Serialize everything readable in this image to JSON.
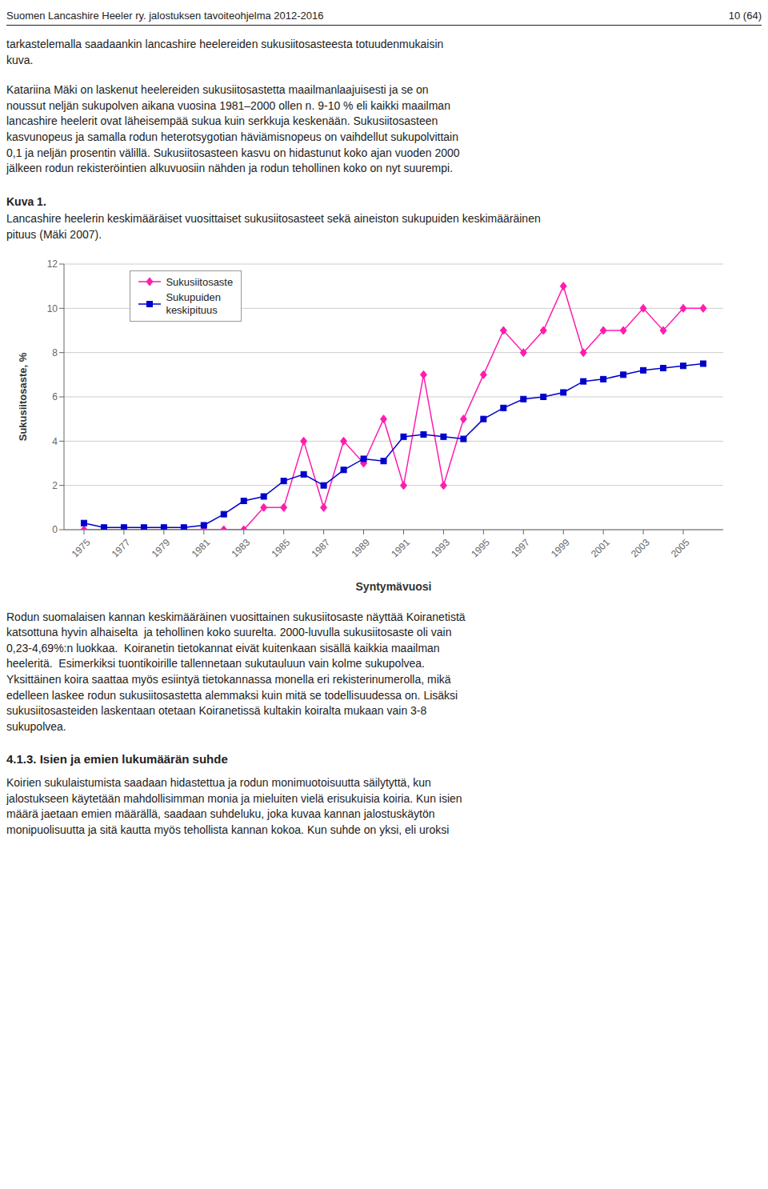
{
  "chart_data": {
    "type": "line",
    "title": "Kuva 1.",
    "subtitle": "Lancashire heelerin keskimääräiset vuosittaiset sukusiitosasteet sekä aineiston sukupuiden keskimääräinen\npituus (Mäki 2007).",
    "annotations": [
      "Suomen Lancashire Heeler ry. jalostuksen tavoiteohjelma 2012-2016",
      "10 (64)",
      "tarkastelemalla saadaankin lancashire heelereiden sukusiitosasteesta totuudenmukaisin\nkuva.",
      "Katariina Mäki on laskenut heelereiden sukusiitosastetta maailmanlaajuisesti ja se on\nnoussut neljän sukupolven aikana vuosina 1981–2000 ollen n. 9-10 % eli kaikki maailman\nlancashire heelerit ovat läheisempää sukua kuin serkkuja keskenään. Sukusiitosasteen\nkasvunopeus ja samalla rodun heterotsygotian häviämisnopeus on vaihdellut sukupolvittain\n0,1 ja neljän prosentin välillä. Sukusiitosasteen kasvu on hidastunut koko ajan vuoden 2000\njälkeen rodun rekisteröintien alkuvuosiin nähden ja rodun tehollinen koko on nyt suurempi.",
      "Rodun suomalaisen kannan keskimääräinen vuosittainen sukusiitosaste näyttää Koiranetistä\nkatsottuna hyvin alhaiselta  ja tehollinen koko suurelta. 2000-luvulla sukusiitosaste oli vain\n0,23-4,69%:n luokkaa.  Koiranetin tietokannat eivät kuitenkaan sisällä kaikkia maailman\nheeleritä.  Esimerkiksi tuontikoirille tallennetaan sukutauluun vain kolme sukupolvea.\nYksittäinen koira saattaa myös esiintyä tietokannassa monella eri rekisterinumerolla, mikä\nedelleen laskee rodun sukusiitosastetta alemmaksi kuin mitä se todellisuudessa on. Lisäksi\nsukusiitosasteiden laskentaan otetaan Koiranetissä kultakin koiralta mukaan vain 3-8\nsukupolvea.",
      "4.1.3. Isien ja emien lukumäärän suhde",
      "Koirien sukulaistumista saadaan hidastettua ja rodun monimuotoisuutta säilytyttä, kun\njalostukseen käytetään mahdollisimman monia ja mieluiten vielä erisukuisia koiria. Kun isien\nmäärä jaetaan emien määrällä, saadaan suhdeluku, joka kuvaa kannan jalostuskäytön\nmonipuolisuutta ja sitä kautta myös tehollista kannan kokoa. Kun suhde on yksi, eli uroksi"
    ],
    "x_label": "Syntymävuosi",
    "y_label": "Sukusiitosaste, %",
    "x": [
      1975,
      1976,
      1977,
      1978,
      1979,
      1980,
      1981,
      1982,
      1983,
      1984,
      1985,
      1986,
      1987,
      1988,
      1989,
      1990,
      1991,
      1992,
      1993,
      1994,
      1995,
      1996,
      1997,
      1998,
      1999,
      2000,
      2001,
      2002,
      2003,
      2004,
      2005,
      2006
    ],
    "series": [
      {
        "name": "Sukusiitosaste",
        "color": "#FF1CAE",
        "marker": "diamond",
        "values": [
          0,
          0,
          0,
          0,
          0,
          0,
          0,
          0,
          0,
          1,
          1,
          4,
          1,
          4,
          3,
          5,
          2,
          7,
          2,
          5,
          7,
          9,
          8,
          9,
          11,
          8,
          9,
          9,
          10,
          9,
          10,
          10
        ]
      },
      {
        "name": "Sukupuiden\nkeskipituus",
        "color": "#0000CD",
        "marker": "square",
        "values": [
          0.3,
          0.1,
          0.1,
          0.1,
          0.1,
          0.1,
          0.2,
          0.7,
          1.3,
          1.5,
          2.2,
          2.5,
          2.0,
          2.7,
          3.2,
          3.1,
          4.2,
          4.3,
          4.2,
          4.1,
          5.0,
          5.5,
          5.9,
          6.0,
          6.2,
          6.7,
          6.8,
          7.0,
          7.2,
          7.3,
          7.4,
          7.5
        ]
      }
    ],
    "xlim": [
      1974,
      2007
    ],
    "xticks": [
      1975,
      1977,
      1979,
      1981,
      1983,
      1985,
      1987,
      1989,
      1991,
      1993,
      1995,
      1997,
      1999,
      2001,
      2003,
      2005
    ],
    "ylim": [
      0,
      12
    ],
    "yticks": [
      0,
      2,
      4,
      6,
      8,
      10,
      12
    ],
    "grid": "y",
    "legend": "upper left"
  }
}
